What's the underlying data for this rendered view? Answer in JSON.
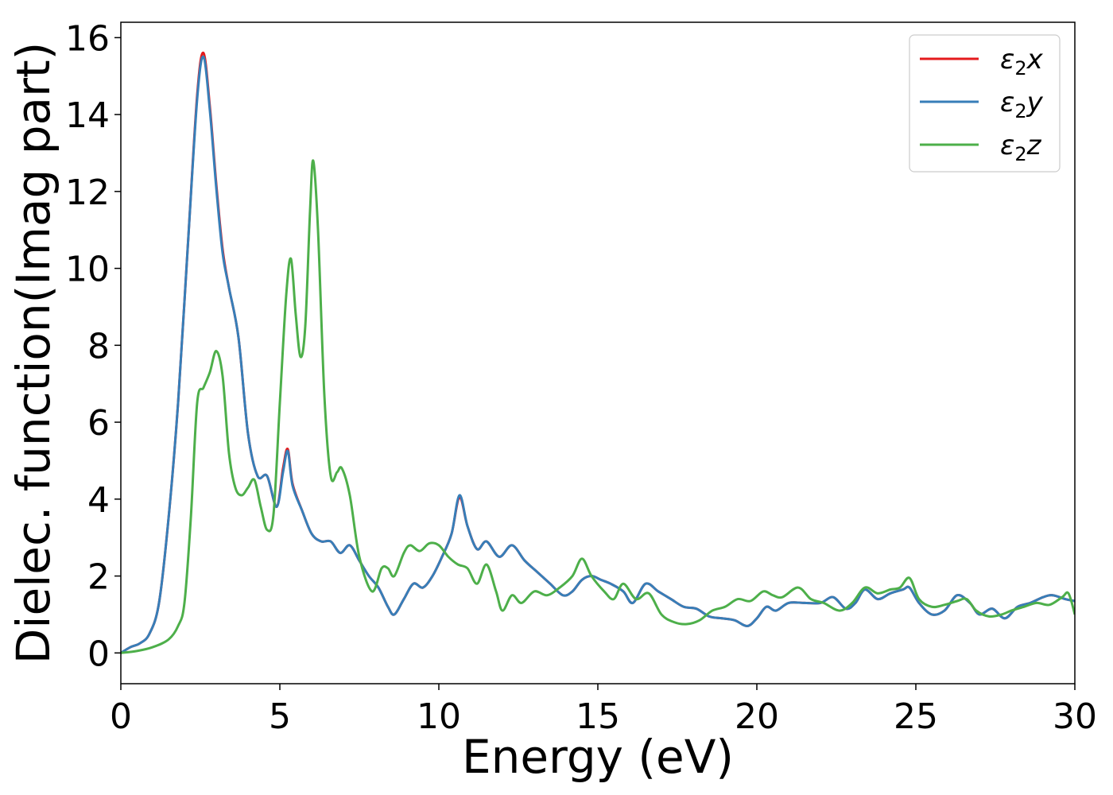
{
  "chart_data": {
    "type": "line",
    "title": "",
    "xlabel": "Energy (eV)",
    "ylabel": "Dielec. function(Imag part)",
    "xlim": [
      0,
      30
    ],
    "ylim": [
      -0.8,
      16.4
    ],
    "xticks": [
      "0",
      "5",
      "10",
      "15",
      "20",
      "25",
      "30"
    ],
    "yticks": [
      "0",
      "2",
      "4",
      "6",
      "8",
      "10",
      "12",
      "14",
      "16"
    ],
    "grid": false,
    "legend_position": "top-right",
    "series": [
      {
        "name": "ε₂x",
        "legend_main": "ε",
        "legend_sub": "2",
        "legend_var": "x",
        "color": "#e41a1c",
        "points": [
          [
            0,
            0
          ],
          [
            0.3,
            0.15
          ],
          [
            0.6,
            0.25
          ],
          [
            0.9,
            0.5
          ],
          [
            1.2,
            1.3
          ],
          [
            1.5,
            3.5
          ],
          [
            1.8,
            6.5
          ],
          [
            2.1,
            10.5
          ],
          [
            2.4,
            14.5
          ],
          [
            2.6,
            15.6
          ],
          [
            2.8,
            14.2
          ],
          [
            3.0,
            12.2
          ],
          [
            3.2,
            10.5
          ],
          [
            3.4,
            9.5
          ],
          [
            3.7,
            8.2
          ],
          [
            4.0,
            5.7
          ],
          [
            4.3,
            4.6
          ],
          [
            4.6,
            4.6
          ],
          [
            4.9,
            3.8
          ],
          [
            5.1,
            4.8
          ],
          [
            5.25,
            5.3
          ],
          [
            5.4,
            4.4
          ],
          [
            5.7,
            3.7
          ],
          [
            6.0,
            3.1
          ],
          [
            6.3,
            2.9
          ],
          [
            6.6,
            2.9
          ],
          [
            6.9,
            2.6
          ],
          [
            7.2,
            2.8
          ],
          [
            7.5,
            2.4
          ],
          [
            7.8,
            2.0
          ],
          [
            8.1,
            1.7
          ],
          [
            8.4,
            1.2
          ],
          [
            8.6,
            1.0
          ],
          [
            8.9,
            1.4
          ],
          [
            9.2,
            1.8
          ],
          [
            9.5,
            1.7
          ],
          [
            9.8,
            2.0
          ],
          [
            10.1,
            2.5
          ],
          [
            10.4,
            3.1
          ],
          [
            10.65,
            4.05
          ],
          [
            10.9,
            3.3
          ],
          [
            11.2,
            2.7
          ],
          [
            11.5,
            2.9
          ],
          [
            11.9,
            2.5
          ],
          [
            12.3,
            2.8
          ],
          [
            12.7,
            2.4
          ],
          [
            13.1,
            2.1
          ],
          [
            13.5,
            1.8
          ],
          [
            13.9,
            1.5
          ],
          [
            14.2,
            1.6
          ],
          [
            14.5,
            1.9
          ],
          [
            14.8,
            2.0
          ],
          [
            15.1,
            1.9
          ],
          [
            15.4,
            1.8
          ],
          [
            15.8,
            1.6
          ],
          [
            16.1,
            1.3
          ],
          [
            16.5,
            1.8
          ],
          [
            16.9,
            1.6
          ],
          [
            17.3,
            1.4
          ],
          [
            17.7,
            1.2
          ],
          [
            18.1,
            1.15
          ],
          [
            18.5,
            0.95
          ],
          [
            18.9,
            0.9
          ],
          [
            19.3,
            0.85
          ],
          [
            19.7,
            0.7
          ],
          [
            20.0,
            0.9
          ],
          [
            20.3,
            1.2
          ],
          [
            20.6,
            1.1
          ],
          [
            21.0,
            1.3
          ],
          [
            21.5,
            1.3
          ],
          [
            22.0,
            1.3
          ],
          [
            22.4,
            1.45
          ],
          [
            22.8,
            1.15
          ],
          [
            23.1,
            1.3
          ],
          [
            23.4,
            1.65
          ],
          [
            23.8,
            1.4
          ],
          [
            24.2,
            1.55
          ],
          [
            24.6,
            1.65
          ],
          [
            24.8,
            1.7
          ],
          [
            25.1,
            1.3
          ],
          [
            25.5,
            1.0
          ],
          [
            25.9,
            1.1
          ],
          [
            26.3,
            1.5
          ],
          [
            26.7,
            1.3
          ],
          [
            27.0,
            1.0
          ],
          [
            27.4,
            1.15
          ],
          [
            27.8,
            0.9
          ],
          [
            28.2,
            1.2
          ],
          [
            28.6,
            1.3
          ],
          [
            29.0,
            1.45
          ],
          [
            29.3,
            1.5
          ],
          [
            29.7,
            1.4
          ],
          [
            30.0,
            1.35
          ]
        ]
      },
      {
        "name": "ε₂y",
        "legend_main": "ε",
        "legend_sub": "2",
        "legend_var": "y",
        "color": "#377eb8",
        "points": [
          [
            0,
            0
          ],
          [
            0.3,
            0.15
          ],
          [
            0.6,
            0.25
          ],
          [
            0.9,
            0.5
          ],
          [
            1.2,
            1.3
          ],
          [
            1.5,
            3.5
          ],
          [
            1.8,
            6.5
          ],
          [
            2.1,
            10.5
          ],
          [
            2.4,
            14.4
          ],
          [
            2.6,
            15.5
          ],
          [
            2.8,
            14.1
          ],
          [
            3.0,
            12.1
          ],
          [
            3.2,
            10.4
          ],
          [
            3.4,
            9.5
          ],
          [
            3.7,
            8.2
          ],
          [
            4.0,
            5.7
          ],
          [
            4.3,
            4.6
          ],
          [
            4.6,
            4.6
          ],
          [
            4.9,
            3.8
          ],
          [
            5.1,
            4.7
          ],
          [
            5.25,
            5.25
          ],
          [
            5.4,
            4.35
          ],
          [
            5.7,
            3.7
          ],
          [
            6.0,
            3.1
          ],
          [
            6.3,
            2.9
          ],
          [
            6.6,
            2.9
          ],
          [
            6.9,
            2.6
          ],
          [
            7.2,
            2.8
          ],
          [
            7.5,
            2.4
          ],
          [
            7.8,
            2.0
          ],
          [
            8.1,
            1.7
          ],
          [
            8.4,
            1.2
          ],
          [
            8.6,
            1.0
          ],
          [
            8.9,
            1.4
          ],
          [
            9.2,
            1.8
          ],
          [
            9.5,
            1.7
          ],
          [
            9.8,
            2.0
          ],
          [
            10.1,
            2.5
          ],
          [
            10.4,
            3.1
          ],
          [
            10.65,
            4.1
          ],
          [
            10.9,
            3.3
          ],
          [
            11.2,
            2.7
          ],
          [
            11.5,
            2.9
          ],
          [
            11.9,
            2.5
          ],
          [
            12.3,
            2.8
          ],
          [
            12.7,
            2.4
          ],
          [
            13.1,
            2.1
          ],
          [
            13.5,
            1.8
          ],
          [
            13.9,
            1.5
          ],
          [
            14.2,
            1.6
          ],
          [
            14.5,
            1.9
          ],
          [
            14.8,
            2.0
          ],
          [
            15.1,
            1.9
          ],
          [
            15.4,
            1.8
          ],
          [
            15.8,
            1.6
          ],
          [
            16.1,
            1.3
          ],
          [
            16.5,
            1.8
          ],
          [
            16.9,
            1.6
          ],
          [
            17.3,
            1.4
          ],
          [
            17.7,
            1.2
          ],
          [
            18.1,
            1.15
          ],
          [
            18.5,
            0.95
          ],
          [
            18.9,
            0.9
          ],
          [
            19.3,
            0.85
          ],
          [
            19.7,
            0.7
          ],
          [
            20.0,
            0.9
          ],
          [
            20.3,
            1.2
          ],
          [
            20.6,
            1.1
          ],
          [
            21.0,
            1.3
          ],
          [
            21.5,
            1.3
          ],
          [
            22.0,
            1.3
          ],
          [
            22.4,
            1.45
          ],
          [
            22.8,
            1.15
          ],
          [
            23.1,
            1.3
          ],
          [
            23.4,
            1.65
          ],
          [
            23.8,
            1.4
          ],
          [
            24.2,
            1.55
          ],
          [
            24.6,
            1.65
          ],
          [
            24.8,
            1.7
          ],
          [
            25.1,
            1.3
          ],
          [
            25.5,
            1.0
          ],
          [
            25.9,
            1.1
          ],
          [
            26.3,
            1.5
          ],
          [
            26.7,
            1.3
          ],
          [
            27.0,
            1.0
          ],
          [
            27.4,
            1.15
          ],
          [
            27.8,
            0.9
          ],
          [
            28.2,
            1.2
          ],
          [
            28.6,
            1.3
          ],
          [
            29.0,
            1.45
          ],
          [
            29.3,
            1.5
          ],
          [
            29.7,
            1.4
          ],
          [
            30.0,
            1.35
          ]
        ]
      },
      {
        "name": "ε₂z",
        "legend_main": "ε",
        "legend_sub": "2",
        "legend_var": "z",
        "color": "#4daf4a",
        "points": [
          [
            0,
            0
          ],
          [
            0.5,
            0.05
          ],
          [
            1.0,
            0.15
          ],
          [
            1.5,
            0.35
          ],
          [
            1.8,
            0.7
          ],
          [
            2.0,
            1.3
          ],
          [
            2.2,
            3.5
          ],
          [
            2.4,
            6.5
          ],
          [
            2.6,
            6.9
          ],
          [
            2.8,
            7.3
          ],
          [
            3.0,
            7.85
          ],
          [
            3.2,
            7.2
          ],
          [
            3.4,
            5.2
          ],
          [
            3.6,
            4.3
          ],
          [
            3.8,
            4.1
          ],
          [
            4.0,
            4.3
          ],
          [
            4.2,
            4.5
          ],
          [
            4.4,
            3.8
          ],
          [
            4.6,
            3.2
          ],
          [
            4.8,
            3.6
          ],
          [
            5.0,
            6.5
          ],
          [
            5.2,
            9.3
          ],
          [
            5.35,
            10.25
          ],
          [
            5.5,
            8.8
          ],
          [
            5.65,
            7.7
          ],
          [
            5.8,
            8.5
          ],
          [
            5.95,
            11.5
          ],
          [
            6.05,
            12.8
          ],
          [
            6.2,
            11.0
          ],
          [
            6.4,
            6.7
          ],
          [
            6.6,
            4.6
          ],
          [
            6.8,
            4.7
          ],
          [
            6.95,
            4.8
          ],
          [
            7.2,
            4.1
          ],
          [
            7.5,
            2.5
          ],
          [
            7.9,
            1.6
          ],
          [
            8.2,
            2.2
          ],
          [
            8.4,
            2.2
          ],
          [
            8.6,
            2.0
          ],
          [
            8.9,
            2.6
          ],
          [
            9.1,
            2.8
          ],
          [
            9.4,
            2.65
          ],
          [
            9.7,
            2.85
          ],
          [
            10.0,
            2.8
          ],
          [
            10.3,
            2.5
          ],
          [
            10.6,
            2.3
          ],
          [
            10.9,
            2.2
          ],
          [
            11.2,
            1.8
          ],
          [
            11.5,
            2.3
          ],
          [
            11.8,
            1.6
          ],
          [
            12.0,
            1.1
          ],
          [
            12.3,
            1.5
          ],
          [
            12.6,
            1.3
          ],
          [
            13.0,
            1.6
          ],
          [
            13.4,
            1.5
          ],
          [
            13.8,
            1.7
          ],
          [
            14.2,
            2.0
          ],
          [
            14.5,
            2.45
          ],
          [
            14.8,
            2.0
          ],
          [
            15.2,
            1.6
          ],
          [
            15.5,
            1.4
          ],
          [
            15.8,
            1.8
          ],
          [
            16.2,
            1.4
          ],
          [
            16.6,
            1.55
          ],
          [
            17.0,
            1.0
          ],
          [
            17.4,
            0.8
          ],
          [
            17.8,
            0.75
          ],
          [
            18.2,
            0.85
          ],
          [
            18.6,
            1.1
          ],
          [
            19.0,
            1.2
          ],
          [
            19.4,
            1.4
          ],
          [
            19.8,
            1.35
          ],
          [
            20.2,
            1.6
          ],
          [
            20.5,
            1.5
          ],
          [
            20.8,
            1.45
          ],
          [
            21.3,
            1.7
          ],
          [
            21.7,
            1.4
          ],
          [
            22.1,
            1.3
          ],
          [
            22.6,
            1.1
          ],
          [
            23.0,
            1.3
          ],
          [
            23.4,
            1.7
          ],
          [
            23.8,
            1.55
          ],
          [
            24.2,
            1.65
          ],
          [
            24.5,
            1.7
          ],
          [
            24.8,
            1.95
          ],
          [
            25.1,
            1.4
          ],
          [
            25.5,
            1.2
          ],
          [
            25.9,
            1.25
          ],
          [
            26.3,
            1.35
          ],
          [
            26.6,
            1.4
          ],
          [
            26.9,
            1.1
          ],
          [
            27.3,
            0.95
          ],
          [
            27.7,
            1.0
          ],
          [
            28.0,
            1.1
          ],
          [
            28.4,
            1.2
          ],
          [
            28.8,
            1.3
          ],
          [
            29.2,
            1.25
          ],
          [
            29.6,
            1.45
          ],
          [
            29.8,
            1.55
          ],
          [
            30.0,
            1.0
          ]
        ]
      }
    ]
  }
}
